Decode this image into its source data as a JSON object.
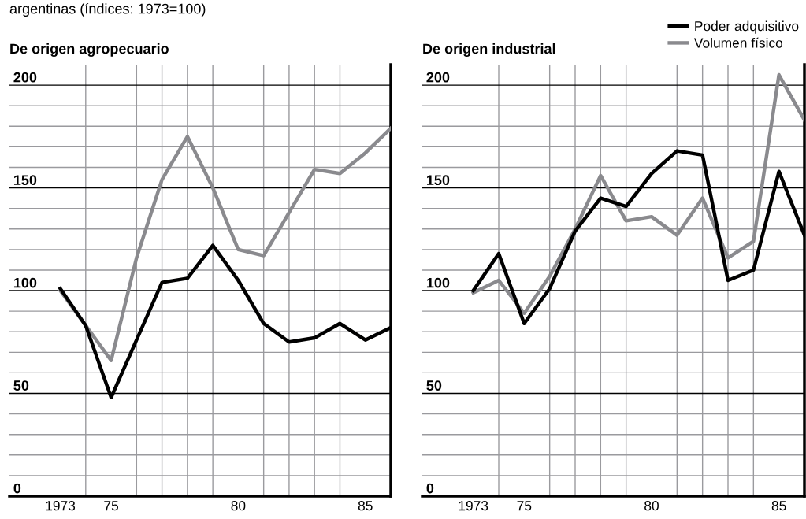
{
  "chart_data": [
    {
      "type": "line",
      "title": "argentinas (índices: 1973=100)",
      "subtitle": "De origen agropecuario",
      "x": [
        1973,
        1974,
        1975,
        1976,
        1977,
        1978,
        1979,
        1980,
        1981,
        1982,
        1983,
        1984,
        1985,
        1986
      ],
      "series": [
        {
          "color": "#8a8a8e",
          "values": [
            100,
            83,
            66,
            116,
            154,
            175,
            150,
            120,
            117,
            138,
            159,
            157,
            167,
            179
          ]
        },
        {
          "color": "#000000",
          "values": [
            101,
            83,
            48,
            76,
            104,
            106,
            122,
            105,
            84,
            75,
            77,
            84,
            76,
            82
          ]
        }
      ],
      "xlim": [
        1971,
        1986
      ],
      "xticks": [
        1973,
        {
          "value": 1975,
          "label": "75"
        },
        {
          "value": 1980,
          "label": "80"
        },
        {
          "value": 1985,
          "label": "85"
        }
      ],
      "ylim": [
        0,
        210
      ],
      "yticks": [
        0,
        50,
        100,
        150,
        200
      ],
      "grid": true,
      "line_style": "solid"
    },
    {
      "type": "line",
      "subtitle": "De origen industrial",
      "x": [
        1973,
        1974,
        1975,
        1976,
        1977,
        1978,
        1979,
        1980,
        1981,
        1982,
        1983,
        1984,
        1985,
        1986
      ],
      "series": [
        {
          "name": "Volumen físico",
          "color": "#8a8a8e",
          "values": [
            99,
            105,
            89,
            107,
            130,
            156,
            134,
            136,
            127,
            145,
            116,
            124,
            205,
            183
          ]
        },
        {
          "name": "Poder adquisitivo",
          "color": "#000000",
          "values": [
            100,
            118,
            84,
            101,
            129,
            145,
            141,
            157,
            168,
            166,
            105,
            110,
            158,
            127
          ]
        }
      ],
      "xlim": [
        1971,
        1986
      ],
      "xticks": [
        1973,
        {
          "value": 1975,
          "label": "75"
        },
        {
          "value": 1980,
          "label": "80"
        },
        {
          "value": 1985,
          "label": "85"
        }
      ],
      "ylim": [
        0,
        210
      ],
      "yticks": [
        0,
        50,
        100,
        150,
        200
      ],
      "grid": true,
      "legend": "top right",
      "line_style": "solid"
    }
  ]
}
